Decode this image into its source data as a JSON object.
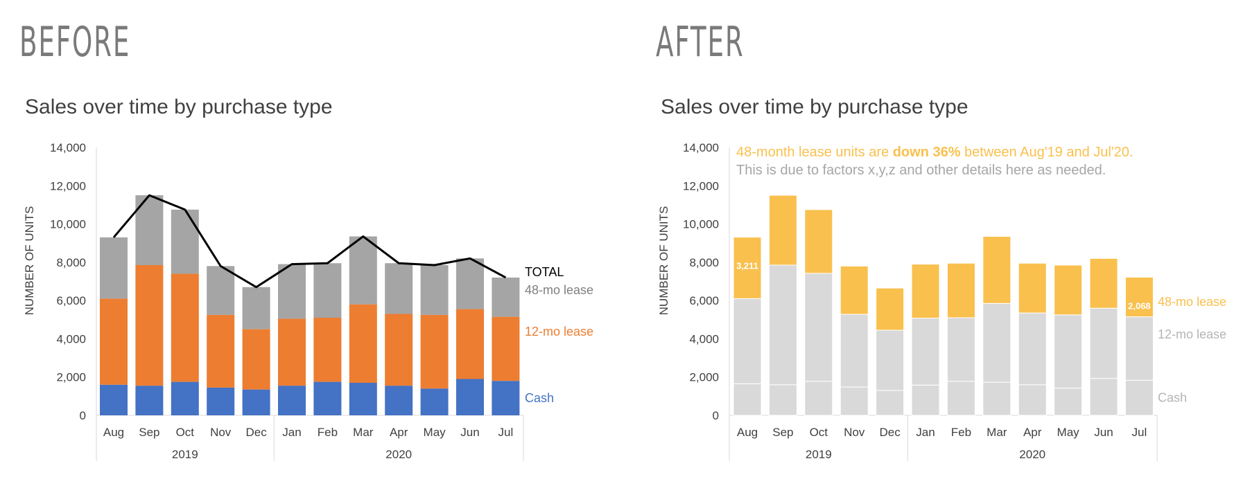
{
  "headings": {
    "before": "BEFORE",
    "after": "AFTER"
  },
  "colors": {
    "cash": "#4472c4",
    "lease12": "#ed7d31",
    "lease48": "#a5a5a5",
    "total": "#000000",
    "highlight": "#f9c04e",
    "muted": "#d9d9d9",
    "muted_text": "#b4b4b4",
    "axis_text": "#404040"
  },
  "chart_data": [
    {
      "type": "bar",
      "stacked": true,
      "title": "Sales over time by purchase type",
      "ylabel": "NUMBER OF UNITS",
      "ylim": [
        0,
        14000
      ],
      "yticks": [
        "0",
        "2,000",
        "4,000",
        "6,000",
        "8,000",
        "10,000",
        "12,000",
        "14,000"
      ],
      "categories": [
        "Aug",
        "Sep",
        "Oct",
        "Nov",
        "Dec",
        "Jan",
        "Feb",
        "Mar",
        "Apr",
        "May",
        "Jun",
        "Jul"
      ],
      "groups": [
        {
          "label": "2019",
          "count": 5
        },
        {
          "label": "2020",
          "count": 7
        }
      ],
      "series": [
        {
          "name": "Cash",
          "values": [
            1600,
            1550,
            1750,
            1450,
            1350,
            1550,
            1750,
            1700,
            1550,
            1400,
            1900,
            1800
          ]
        },
        {
          "name": "12-mo lease",
          "values": [
            4500,
            6300,
            5650,
            3800,
            3150,
            3500,
            3350,
            4100,
            3750,
            3850,
            3650,
            3350
          ]
        },
        {
          "name": "48-mo lease",
          "values": [
            3200,
            3650,
            3350,
            2550,
            2200,
            2850,
            2850,
            3550,
            2650,
            2600,
            2650,
            2050
          ]
        }
      ],
      "line": {
        "name": "TOTAL",
        "values": [
          9300,
          11500,
          10750,
          7800,
          6700,
          7900,
          7950,
          9350,
          7950,
          7850,
          8200,
          7200
        ]
      },
      "grid": false
    },
    {
      "type": "bar",
      "stacked": true,
      "title": "Sales over time by purchase type",
      "ylabel": "NUMBER OF UNITS",
      "ylim": [
        0,
        14000
      ],
      "yticks": [
        "0",
        "2,000",
        "4,000",
        "6,000",
        "8,000",
        "10,000",
        "12,000",
        "14,000"
      ],
      "categories": [
        "Aug",
        "Sep",
        "Oct",
        "Nov",
        "Dec",
        "Jan",
        "Feb",
        "Mar",
        "Apr",
        "May",
        "Jun",
        "Jul"
      ],
      "groups": [
        {
          "label": "2019",
          "count": 5
        },
        {
          "label": "2020",
          "count": 7
        }
      ],
      "series": [
        {
          "name": "Cash",
          "values": [
            1650,
            1600,
            1780,
            1480,
            1300,
            1580,
            1780,
            1730,
            1600,
            1420,
            1930,
            1830
          ]
        },
        {
          "name": "12-mo lease",
          "values": [
            4450,
            6250,
            5640,
            3800,
            3150,
            3500,
            3320,
            4120,
            3750,
            3830,
            3670,
            3320
          ]
        },
        {
          "name": "48-mo lease",
          "values": [
            3211,
            3650,
            3330,
            2520,
            2200,
            2820,
            2850,
            3500,
            2600,
            2600,
            2600,
            2068
          ]
        }
      ],
      "data_labels": [
        {
          "index": 0,
          "text": "3,211"
        },
        {
          "index": 11,
          "text": "2,068"
        }
      ],
      "annotation": {
        "line1_pre": "48-month lease units are ",
        "line1_bold": "down 36%",
        "line1_post": " between Aug'19 and Jul'20.",
        "line2": "This is due to factors x,y,z and other details here as needed."
      },
      "grid": false
    }
  ]
}
